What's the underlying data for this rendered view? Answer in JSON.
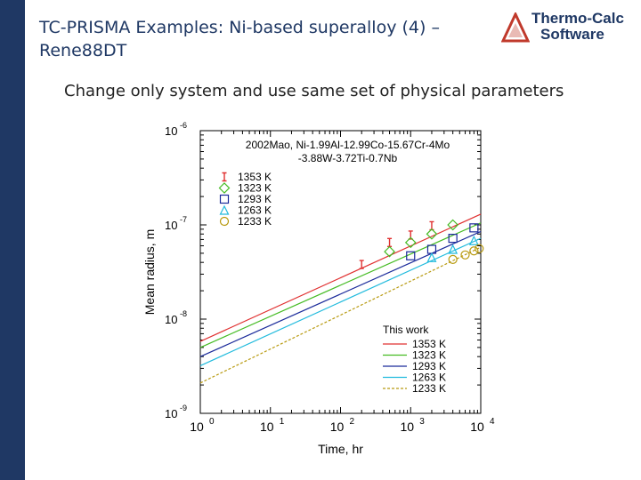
{
  "slide": {
    "title_line1": "TC-PRISMA Examples: Ni-based superalloy (4) –",
    "title_line2": "Rene88DT",
    "subtitle": "Change only system and use same set of physical parameters",
    "logo_line1": "Thermo-Calc",
    "logo_line2": "Software",
    "accent_color": "#1f3864",
    "logo_color": "#c0392b"
  },
  "chart_data": {
    "type": "line",
    "xlabel": "Time, hr",
    "ylabel": "Mean radius, m",
    "xscale": "log",
    "yscale": "log",
    "xlim": [
      1,
      10000
    ],
    "ylim": [
      1e-09,
      1e-06
    ],
    "x_ticks": [
      {
        "base": "10",
        "exp": "0"
      },
      {
        "base": "10",
        "exp": "1"
      },
      {
        "base": "10",
        "exp": "2"
      },
      {
        "base": "10",
        "exp": "3"
      },
      {
        "base": "10",
        "exp": "4"
      }
    ],
    "y_ticks": [
      {
        "base": "10",
        "exp": "-9"
      },
      {
        "base": "10",
        "exp": "-8"
      },
      {
        "base": "10",
        "exp": "-7"
      },
      {
        "base": "10",
        "exp": "-6"
      }
    ],
    "annotation_line1": "2002Mao, Ni-1.99Al-12.99Co-15.67Cr-4Mo",
    "annotation_line2": "-3.88W-3.72Ti-0.7Nb",
    "experiment_legend": [
      {
        "label": "1353 K",
        "marker": "hourglass",
        "color": "#e03030"
      },
      {
        "label": "1323 K",
        "marker": "diamond",
        "color": "#44bb22"
      },
      {
        "label": "1293 K",
        "marker": "square",
        "color": "#1a2a9a"
      },
      {
        "label": "1263 K",
        "marker": "triangle",
        "color": "#22bbdd"
      },
      {
        "label": "1233 K",
        "marker": "circle",
        "color": "#b89a10"
      }
    ],
    "model_legend_title": "This work",
    "series": [
      {
        "name": "1353 K",
        "color": "#e03030",
        "dash": "",
        "x": [
          1,
          10000
        ],
        "y": [
          5.8e-09,
          1.3e-07
        ],
        "points": [
          {
            "x": 200,
            "y": 3.8e-08
          },
          {
            "x": 500,
            "y": 6.5e-08
          },
          {
            "x": 1000,
            "y": 7.8e-08
          },
          {
            "x": 2000,
            "y": 9.8e-08
          }
        ]
      },
      {
        "name": "1323 K",
        "color": "#44bb22",
        "dash": "",
        "x": [
          1,
          10000
        ],
        "y": [
          5e-09,
          1.05e-07
        ],
        "points": [
          {
            "x": 500,
            "y": 5.2e-08
          },
          {
            "x": 1000,
            "y": 6.5e-08
          },
          {
            "x": 2000,
            "y": 8e-08
          },
          {
            "x": 4000,
            "y": 1e-07
          }
        ]
      },
      {
        "name": "1293 K",
        "color": "#1a2a9a",
        "dash": "",
        "x": [
          1,
          10000
        ],
        "y": [
          4e-09,
          8.5e-08
        ],
        "points": [
          {
            "x": 1000,
            "y": 4.7e-08
          },
          {
            "x": 2000,
            "y": 5.5e-08
          },
          {
            "x": 4000,
            "y": 7.2e-08
          },
          {
            "x": 8000,
            "y": 9.3e-08
          }
        ]
      },
      {
        "name": "1263 K",
        "color": "#22bbdd",
        "dash": "",
        "x": [
          1,
          10000
        ],
        "y": [
          3.2e-09,
          7.2e-08
        ],
        "points": [
          {
            "x": 2000,
            "y": 4.5e-08
          },
          {
            "x": 4000,
            "y": 5.5e-08
          },
          {
            "x": 8000,
            "y": 6.8e-08
          }
        ]
      },
      {
        "name": "1233 K",
        "color": "#b89a10",
        "dash": "3,2",
        "x": [
          1,
          10000
        ],
        "y": [
          2.1e-09,
          5.8e-08
        ],
        "points": [
          {
            "x": 4000,
            "y": 4.3e-08
          },
          {
            "x": 6000,
            "y": 4.8e-08
          },
          {
            "x": 8000,
            "y": 5.3e-08
          },
          {
            "x": 9500,
            "y": 5.6e-08
          }
        ]
      }
    ]
  }
}
